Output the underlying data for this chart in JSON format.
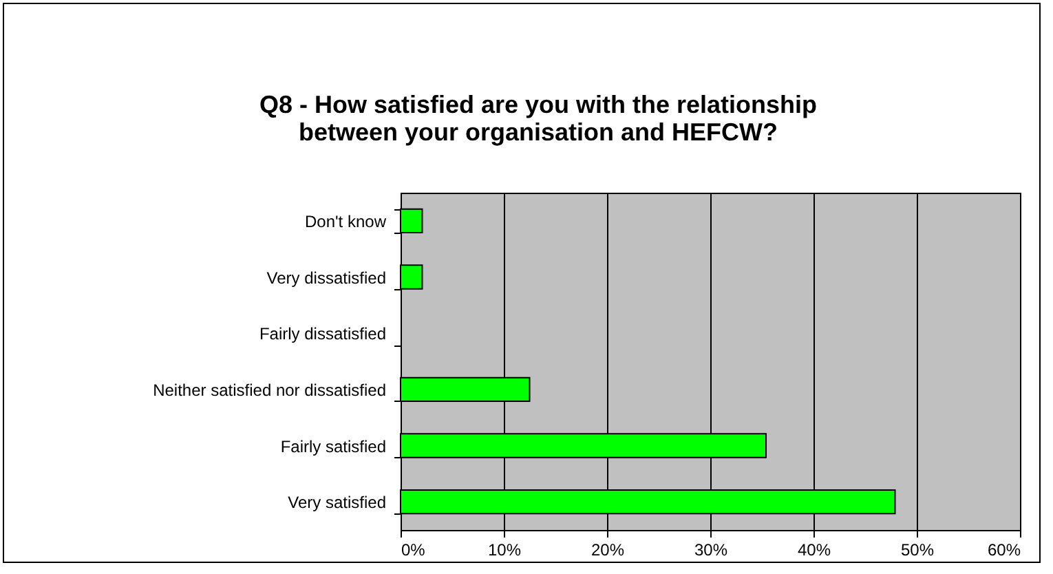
{
  "chart_data": {
    "type": "bar",
    "orientation": "horizontal",
    "title": "Q8 - How satisfied are you with the relationship\nbetween your organisation and HEFCW?",
    "categories": [
      "Don't know",
      "Very dissatisfied",
      "Fairly dissatisfied",
      "Neither satisfied nor dissatisfied",
      "Fairly satisfied",
      "Very satisfied"
    ],
    "values": [
      2.1,
      2.1,
      0,
      12.5,
      35.4,
      47.9
    ],
    "color": "#00ff00",
    "xlim": [
      0,
      60
    ],
    "xticks": [
      {
        "value": 0,
        "label": "0%"
      },
      {
        "value": 10,
        "label": "10%"
      },
      {
        "value": 20,
        "label": "20%"
      },
      {
        "value": 30,
        "label": "30%"
      },
      {
        "value": 40,
        "label": "40%"
      },
      {
        "value": 50,
        "label": "50%"
      },
      {
        "value": 60,
        "label": "60%"
      }
    ],
    "grid": "x"
  }
}
